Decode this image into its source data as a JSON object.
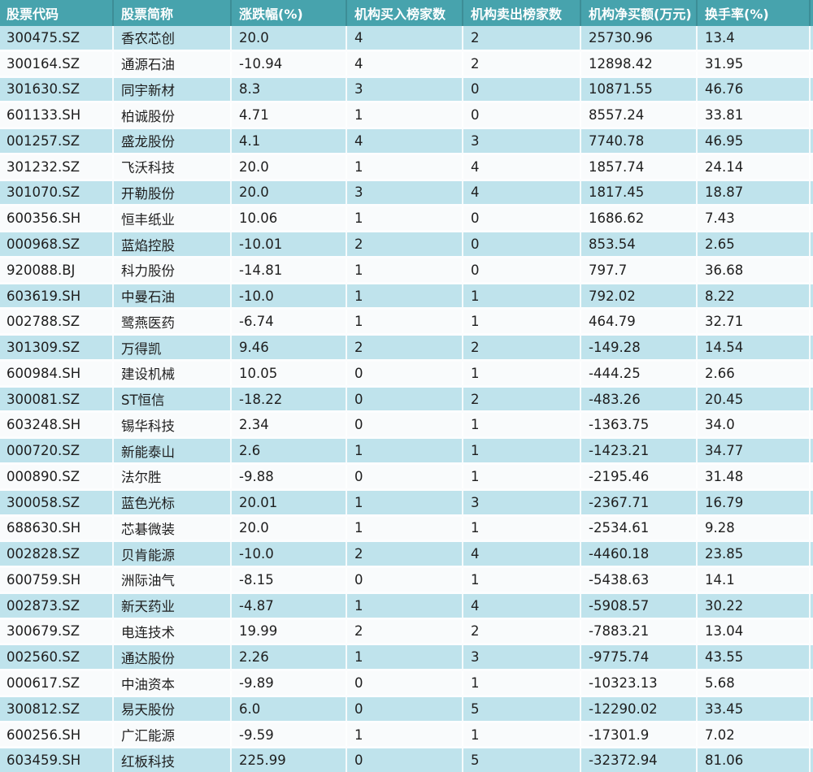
{
  "chart_data": {
    "type": "table",
    "title": "",
    "columns": [
      "股票代码",
      "股票简称",
      "涨跌幅(%)",
      "机构买入榜家数",
      "机构卖出榜家数",
      "机构净买额(万元)",
      "换手率(%)"
    ],
    "rows": [
      [
        "300475.SZ",
        "香农芯创",
        "20.0",
        "4",
        "2",
        "25730.96",
        "13.4"
      ],
      [
        "300164.SZ",
        "通源石油",
        "-10.94",
        "4",
        "2",
        "12898.42",
        "31.95"
      ],
      [
        "301630.SZ",
        "同宇新材",
        "8.3",
        "3",
        "0",
        "10871.55",
        "46.76"
      ],
      [
        "601133.SH",
        "柏诚股份",
        "4.71",
        "1",
        "0",
        "8557.24",
        "33.81"
      ],
      [
        "001257.SZ",
        "盛龙股份",
        "4.1",
        "4",
        "3",
        "7740.78",
        "46.95"
      ],
      [
        "301232.SZ",
        "飞沃科技",
        "20.0",
        "1",
        "4",
        "1857.74",
        "24.14"
      ],
      [
        "301070.SZ",
        "开勒股份",
        "20.0",
        "3",
        "4",
        "1817.45",
        "18.87"
      ],
      [
        "600356.SH",
        "恒丰纸业",
        "10.06",
        "1",
        "0",
        "1686.62",
        "7.43"
      ],
      [
        "000968.SZ",
        "蓝焰控股",
        "-10.01",
        "2",
        "0",
        "853.54",
        "2.65"
      ],
      [
        "920088.BJ",
        "科力股份",
        "-14.81",
        "1",
        "0",
        "797.7",
        "36.68"
      ],
      [
        "603619.SH",
        "中曼石油",
        "-10.0",
        "1",
        "1",
        "792.02",
        "8.22"
      ],
      [
        "002788.SZ",
        "鹭燕医药",
        "-6.74",
        "1",
        "1",
        "464.79",
        "32.71"
      ],
      [
        "301309.SZ",
        "万得凯",
        "9.46",
        "2",
        "2",
        "-149.28",
        "14.54"
      ],
      [
        "600984.SH",
        "建设机械",
        "10.05",
        "0",
        "1",
        "-444.25",
        "2.66"
      ],
      [
        "300081.SZ",
        "ST恒信",
        "-18.22",
        "0",
        "2",
        "-483.26",
        "20.45"
      ],
      [
        "603248.SH",
        "锡华科技",
        "2.34",
        "0",
        "1",
        "-1363.75",
        "34.0"
      ],
      [
        "000720.SZ",
        "新能泰山",
        "2.6",
        "1",
        "1",
        "-1423.21",
        "34.77"
      ],
      [
        "000890.SZ",
        "法尔胜",
        "-9.88",
        "0",
        "1",
        "-2195.46",
        "31.48"
      ],
      [
        "300058.SZ",
        "蓝色光标",
        "20.01",
        "1",
        "3",
        "-2367.71",
        "16.79"
      ],
      [
        "688630.SH",
        "芯碁微装",
        "20.0",
        "1",
        "1",
        "-2534.61",
        "9.28"
      ],
      [
        "002828.SZ",
        "贝肯能源",
        "-10.0",
        "2",
        "4",
        "-4460.18",
        "23.85"
      ],
      [
        "600759.SH",
        "洲际油气",
        "-8.15",
        "0",
        "1",
        "-5438.63",
        "14.1"
      ],
      [
        "002873.SZ",
        "新天药业",
        "-4.87",
        "1",
        "4",
        "-5908.57",
        "30.22"
      ],
      [
        "300679.SZ",
        "电连技术",
        "19.99",
        "2",
        "2",
        "-7883.21",
        "13.04"
      ],
      [
        "002560.SZ",
        "通达股份",
        "2.26",
        "1",
        "3",
        "-9775.74",
        "43.55"
      ],
      [
        "000617.SZ",
        "中油资本",
        "-9.89",
        "0",
        "1",
        "-10323.13",
        "5.68"
      ],
      [
        "300812.SZ",
        "易天股份",
        "6.0",
        "0",
        "5",
        "-12290.02",
        "33.45"
      ],
      [
        "600256.SH",
        "广汇能源",
        "-9.59",
        "1",
        "1",
        "-17301.9",
        "7.02"
      ],
      [
        "603459.SH",
        "红板科技",
        "225.99",
        "0",
        "5",
        "-32372.94",
        "81.06"
      ]
    ],
    "layout": {
      "header_position": "top",
      "grid": "alternating-row-stripes",
      "first_row_stripe": "blue"
    }
  },
  "style": {
    "header_bg": "#47a3ad",
    "header_text": "#ffffff",
    "row_odd_bg": "#bfe3ec",
    "row_even_bg": "#f9fbfc",
    "row_separator": "#fcfdfe",
    "body_text": "#1e1e1e"
  }
}
